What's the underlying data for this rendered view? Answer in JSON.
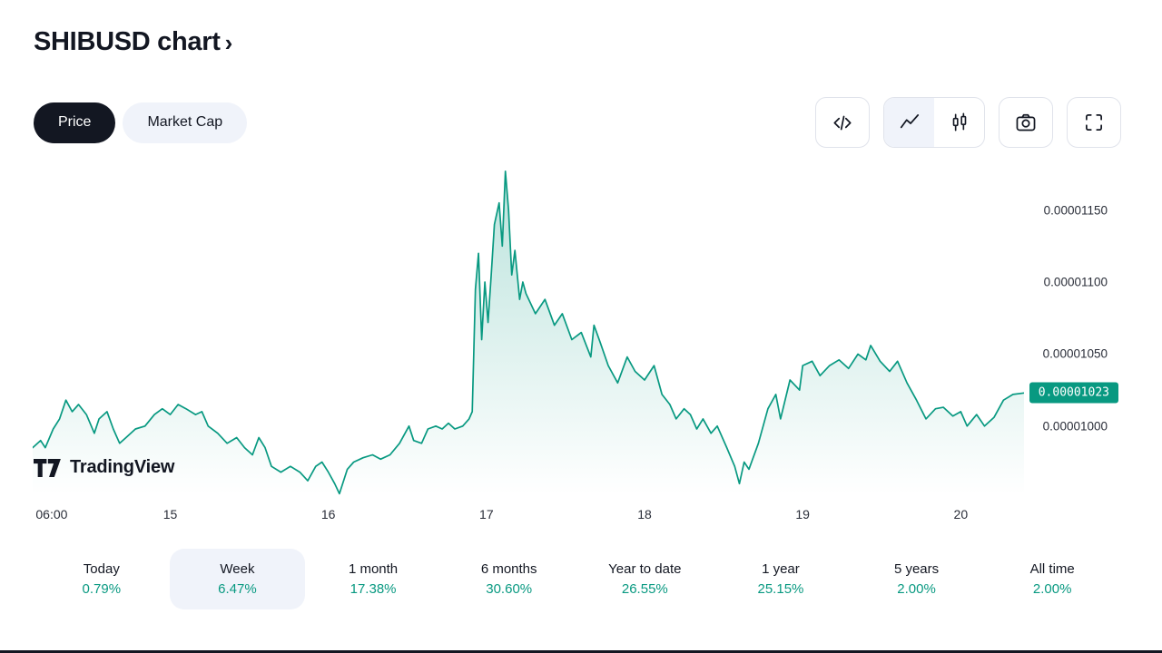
{
  "header": {
    "title": "SHIBUSD chart",
    "chevron": "›"
  },
  "controls": {
    "price_label": "Price",
    "market_cap_label": "Market Cap"
  },
  "toolbar": {
    "icons": [
      "code-view",
      "area-chart",
      "candlestick-chart",
      "camera-snapshot",
      "fullscreen"
    ]
  },
  "logo": {
    "text": "TradingView"
  },
  "colors": {
    "accent": "#089981",
    "dark": "#131722",
    "pill_bg": "#f0f3fa",
    "border": "#e0e3eb"
  },
  "ranges": [
    {
      "label": "Today",
      "change": "0.79%"
    },
    {
      "label": "Week",
      "change": "6.47%",
      "selected": true
    },
    {
      "label": "1 month",
      "change": "17.38%"
    },
    {
      "label": "6 months",
      "change": "30.60%"
    },
    {
      "label": "Year to date",
      "change": "26.55%"
    },
    {
      "label": "1 year",
      "change": "25.15%"
    },
    {
      "label": "5 years",
      "change": "2.00%"
    },
    {
      "label": "All time",
      "change": "2.00%"
    }
  ],
  "chart_data": {
    "type": "area",
    "symbol": "SHIBUSD",
    "line_color": "#089981",
    "legend_position": "none",
    "grid": false,
    "x_domain": [
      14.13,
      20.4
    ],
    "y_domain": [
      9.52e-06,
      1.18e-05
    ],
    "x_ticks": [
      {
        "x": 14.25,
        "label": "06:00"
      },
      {
        "x": 15,
        "label": "15"
      },
      {
        "x": 16,
        "label": "16"
      },
      {
        "x": 17,
        "label": "17"
      },
      {
        "x": 18,
        "label": "18"
      },
      {
        "x": 19,
        "label": "19"
      },
      {
        "x": 20,
        "label": "20"
      }
    ],
    "y_ticks": [
      {
        "y": 1.15e-05,
        "label": "0.00001150"
      },
      {
        "y": 1.1e-05,
        "label": "0.00001100"
      },
      {
        "y": 1.05e-05,
        "label": "0.00001050"
      },
      {
        "y": 1e-05,
        "label": "0.00001000"
      }
    ],
    "last_price": {
      "value": 1.023e-05,
      "label": "0.00001023"
    },
    "points": [
      [
        14.13,
        9.85e-06
      ],
      [
        14.18,
        9.9e-06
      ],
      [
        14.21,
        9.85e-06
      ],
      [
        14.26,
        9.98e-06
      ],
      [
        14.3,
        1.005e-05
      ],
      [
        14.34,
        1.018e-05
      ],
      [
        14.38,
        1.01e-05
      ],
      [
        14.42,
        1.015e-05
      ],
      [
        14.47,
        1.008e-05
      ],
      [
        14.52,
        9.95e-06
      ],
      [
        14.55,
        1.005e-05
      ],
      [
        14.6,
        1.01e-05
      ],
      [
        14.64,
        9.98e-06
      ],
      [
        14.68,
        9.88e-06
      ],
      [
        14.72,
        9.92e-06
      ],
      [
        14.78,
        9.98e-06
      ],
      [
        14.84,
        1e-05
      ],
      [
        14.9,
        1.008e-05
      ],
      [
        14.95,
        1.012e-05
      ],
      [
        15.0,
        1.008e-05
      ],
      [
        15.05,
        1.015e-05
      ],
      [
        15.1,
        1.012e-05
      ],
      [
        15.16,
        1.008e-05
      ],
      [
        15.2,
        1.01e-05
      ],
      [
        15.24,
        1e-05
      ],
      [
        15.3,
        9.95e-06
      ],
      [
        15.36,
        9.88e-06
      ],
      [
        15.42,
        9.92e-06
      ],
      [
        15.47,
        9.85e-06
      ],
      [
        15.52,
        9.8e-06
      ],
      [
        15.56,
        9.92e-06
      ],
      [
        15.6,
        9.85e-06
      ],
      [
        15.64,
        9.72e-06
      ],
      [
        15.7,
        9.68e-06
      ],
      [
        15.76,
        9.72e-06
      ],
      [
        15.82,
        9.68e-06
      ],
      [
        15.87,
        9.62e-06
      ],
      [
        15.92,
        9.72e-06
      ],
      [
        15.96,
        9.75e-06
      ],
      [
        16.0,
        9.68e-06
      ],
      [
        16.04,
        9.6e-06
      ],
      [
        16.07,
        9.53e-06
      ],
      [
        16.12,
        9.7e-06
      ],
      [
        16.16,
        9.75e-06
      ],
      [
        16.22,
        9.78e-06
      ],
      [
        16.28,
        9.8e-06
      ],
      [
        16.33,
        9.77e-06
      ],
      [
        16.39,
        9.8e-06
      ],
      [
        16.45,
        9.88e-06
      ],
      [
        16.51,
        1e-05
      ],
      [
        16.54,
        9.9e-06
      ],
      [
        16.59,
        9.88e-06
      ],
      [
        16.63,
        9.98e-06
      ],
      [
        16.68,
        1e-05
      ],
      [
        16.72,
        9.98e-06
      ],
      [
        16.76,
        1.002e-05
      ],
      [
        16.8,
        9.98e-06
      ],
      [
        16.85,
        1e-05
      ],
      [
        16.89,
        1.005e-05
      ],
      [
        16.91,
        1.01e-05
      ],
      [
        16.93,
        1.095e-05
      ],
      [
        16.95,
        1.12e-05
      ],
      [
        16.97,
        1.06e-05
      ],
      [
        16.99,
        1.1e-05
      ],
      [
        17.01,
        1.072e-05
      ],
      [
        17.03,
        1.105e-05
      ],
      [
        17.05,
        1.14e-05
      ],
      [
        17.08,
        1.155e-05
      ],
      [
        17.1,
        1.125e-05
      ],
      [
        17.12,
        1.177e-05
      ],
      [
        17.14,
        1.15e-05
      ],
      [
        17.16,
        1.105e-05
      ],
      [
        17.18,
        1.122e-05
      ],
      [
        17.21,
        1.088e-05
      ],
      [
        17.23,
        1.1e-05
      ],
      [
        17.25,
        1.092e-05
      ],
      [
        17.31,
        1.078e-05
      ],
      [
        17.37,
        1.088e-05
      ],
      [
        17.43,
        1.07e-05
      ],
      [
        17.48,
        1.078e-05
      ],
      [
        17.54,
        1.06e-05
      ],
      [
        17.6,
        1.065e-05
      ],
      [
        17.66,
        1.048e-05
      ],
      [
        17.68,
        1.07e-05
      ],
      [
        17.72,
        1.058e-05
      ],
      [
        17.77,
        1.042e-05
      ],
      [
        17.83,
        1.03e-05
      ],
      [
        17.89,
        1.048e-05
      ],
      [
        17.94,
        1.038e-05
      ],
      [
        18.0,
        1.032e-05
      ],
      [
        18.06,
        1.042e-05
      ],
      [
        18.11,
        1.022e-05
      ],
      [
        18.16,
        1.015e-05
      ],
      [
        18.2,
        1.005e-05
      ],
      [
        18.25,
        1.012e-05
      ],
      [
        18.29,
        1.008e-05
      ],
      [
        18.33,
        9.98e-06
      ],
      [
        18.37,
        1.005e-05
      ],
      [
        18.42,
        9.95e-06
      ],
      [
        18.46,
        1e-05
      ],
      [
        18.52,
        9.85e-06
      ],
      [
        18.57,
        9.72e-06
      ],
      [
        18.6,
        9.6e-06
      ],
      [
        18.63,
        9.75e-06
      ],
      [
        18.66,
        9.7e-06
      ],
      [
        18.72,
        9.88e-06
      ],
      [
        18.78,
        1.012e-05
      ],
      [
        18.83,
        1.022e-05
      ],
      [
        18.86,
        1.005e-05
      ],
      [
        18.92,
        1.032e-05
      ],
      [
        18.98,
        1.025e-05
      ],
      [
        19.0,
        1.042e-05
      ],
      [
        19.06,
        1.045e-05
      ],
      [
        19.11,
        1.035e-05
      ],
      [
        19.17,
        1.042e-05
      ],
      [
        19.23,
        1.046e-05
      ],
      [
        19.29,
        1.04e-05
      ],
      [
        19.35,
        1.05e-05
      ],
      [
        19.4,
        1.046e-05
      ],
      [
        19.43,
        1.056e-05
      ],
      [
        19.49,
        1.045e-05
      ],
      [
        19.55,
        1.038e-05
      ],
      [
        19.6,
        1.045e-05
      ],
      [
        19.66,
        1.03e-05
      ],
      [
        19.72,
        1.018e-05
      ],
      [
        19.78,
        1.005e-05
      ],
      [
        19.84,
        1.012e-05
      ],
      [
        19.89,
        1.013e-05
      ],
      [
        19.95,
        1.007e-05
      ],
      [
        20.0,
        1.01e-05
      ],
      [
        20.04,
        1e-05
      ],
      [
        20.1,
        1.008e-05
      ],
      [
        20.15,
        1e-05
      ],
      [
        20.21,
        1.006e-05
      ],
      [
        20.27,
        1.018e-05
      ],
      [
        20.33,
        1.022e-05
      ],
      [
        20.4,
        1.023e-05
      ]
    ]
  }
}
